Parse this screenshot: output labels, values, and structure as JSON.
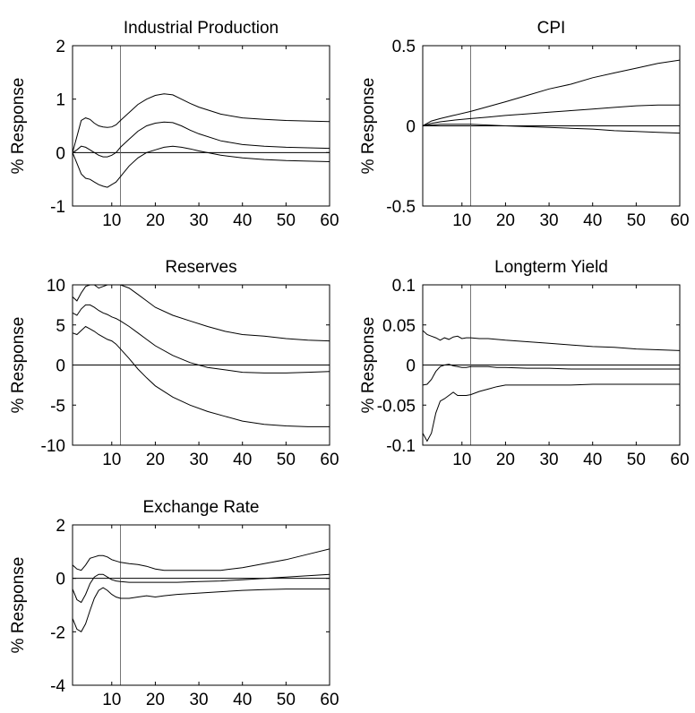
{
  "ylabel": "% Response",
  "colors": {
    "line": "#000000",
    "axes": "#000000",
    "background": "#ffffff"
  },
  "chart_data": [
    {
      "type": "line",
      "title": "Industrial Production",
      "ylabel": "% Response",
      "xlim": [
        1,
        60
      ],
      "ylim": [
        -1,
        2
      ],
      "xticks": [
        10,
        20,
        30,
        40,
        50,
        60
      ],
      "yticks": [
        -1,
        0,
        1,
        2
      ],
      "ytick_labels": [
        "-1",
        "0",
        "1",
        "2"
      ],
      "vline": 12,
      "zero_line": true,
      "series": [
        {
          "x": [
            1,
            2,
            3,
            4,
            5,
            6,
            7,
            8,
            9,
            10,
            11,
            12,
            14,
            16,
            18,
            20,
            22,
            24,
            26,
            28,
            30,
            35,
            40,
            45,
            50,
            55,
            60
          ],
          "values": [
            0,
            0.3,
            0.6,
            0.65,
            0.62,
            0.55,
            0.5,
            0.48,
            0.47,
            0.48,
            0.52,
            0.6,
            0.75,
            0.9,
            1.0,
            1.07,
            1.1,
            1.08,
            1.0,
            0.92,
            0.85,
            0.72,
            0.65,
            0.62,
            0.6,
            0.59,
            0.58
          ]
        },
        {
          "x": [
            1,
            2,
            3,
            4,
            5,
            6,
            7,
            8,
            9,
            10,
            11,
            12,
            14,
            16,
            18,
            20,
            22,
            24,
            26,
            28,
            30,
            35,
            40,
            45,
            50,
            55,
            60
          ],
          "values": [
            0,
            0.05,
            0.12,
            0.1,
            0.05,
            0,
            -0.05,
            -0.08,
            -0.08,
            -0.05,
            0,
            0.1,
            0.25,
            0.4,
            0.5,
            0.55,
            0.57,
            0.56,
            0.5,
            0.42,
            0.35,
            0.22,
            0.15,
            0.12,
            0.1,
            0.09,
            0.08
          ]
        },
        {
          "x": [
            1,
            2,
            3,
            4,
            5,
            6,
            7,
            8,
            9,
            10,
            11,
            12,
            14,
            16,
            18,
            20,
            22,
            24,
            26,
            28,
            30,
            35,
            40,
            45,
            50,
            55,
            60
          ],
          "values": [
            0,
            -0.2,
            -0.4,
            -0.48,
            -0.5,
            -0.55,
            -0.6,
            -0.63,
            -0.65,
            -0.6,
            -0.55,
            -0.45,
            -0.25,
            -0.1,
            0,
            0.05,
            0.1,
            0.12,
            0.1,
            0.07,
            0.03,
            -0.05,
            -0.1,
            -0.13,
            -0.15,
            -0.16,
            -0.17
          ]
        }
      ]
    },
    {
      "type": "line",
      "title": "CPI",
      "ylabel": "% Response",
      "xlim": [
        1,
        60
      ],
      "ylim": [
        -0.5,
        0.5
      ],
      "xticks": [
        10,
        20,
        30,
        40,
        50,
        60
      ],
      "yticks": [
        -0.5,
        0,
        0.5
      ],
      "ytick_labels": [
        "-0.5",
        "0",
        "0.5"
      ],
      "vline": 12,
      "zero_line": true,
      "series": [
        {
          "x": [
            1,
            3,
            5,
            8,
            12,
            16,
            20,
            25,
            30,
            35,
            40,
            45,
            50,
            55,
            60
          ],
          "values": [
            0,
            0.03,
            0.045,
            0.065,
            0.09,
            0.12,
            0.15,
            0.19,
            0.23,
            0.26,
            0.3,
            0.33,
            0.36,
            0.39,
            0.41
          ]
        },
        {
          "x": [
            1,
            3,
            5,
            8,
            12,
            16,
            20,
            25,
            30,
            35,
            40,
            45,
            50,
            55,
            60
          ],
          "values": [
            0,
            0.015,
            0.025,
            0.035,
            0.045,
            0.055,
            0.065,
            0.075,
            0.085,
            0.095,
            0.105,
            0.115,
            0.125,
            0.13,
            0.13
          ]
        },
        {
          "x": [
            1,
            3,
            5,
            8,
            12,
            16,
            20,
            25,
            30,
            35,
            40,
            45,
            50,
            55,
            60
          ],
          "values": [
            0,
            0.005,
            0.01,
            0.01,
            0.01,
            0.005,
            0,
            -0.005,
            -0.01,
            -0.015,
            -0.02,
            -0.03,
            -0.035,
            -0.04,
            -0.045
          ]
        }
      ]
    },
    {
      "type": "line",
      "title": "Reserves",
      "ylabel": "% Response",
      "xlim": [
        1,
        60
      ],
      "ylim": [
        -10,
        10
      ],
      "xticks": [
        10,
        20,
        30,
        40,
        50,
        60
      ],
      "yticks": [
        -10,
        -5,
        0,
        5,
        10
      ],
      "ytick_labels": [
        "-10",
        "-5",
        "0",
        "5",
        "10"
      ],
      "vline": 12,
      "zero_line": true,
      "series": [
        {
          "x": [
            1,
            2,
            3,
            4,
            5,
            6,
            7,
            8,
            9,
            10,
            11,
            12,
            14,
            16,
            18,
            20,
            24,
            28,
            32,
            36,
            40,
            45,
            50,
            55,
            60
          ],
          "values": [
            8.5,
            8,
            9,
            9.8,
            10,
            10,
            9.6,
            9.8,
            10,
            10,
            10,
            10,
            9.6,
            8.8,
            8,
            7.2,
            6.2,
            5.5,
            4.8,
            4.2,
            3.8,
            3.6,
            3.3,
            3.1,
            3
          ]
        },
        {
          "x": [
            1,
            2,
            3,
            4,
            5,
            6,
            7,
            8,
            9,
            10,
            11,
            12,
            14,
            16,
            18,
            20,
            24,
            28,
            32,
            36,
            40,
            45,
            50,
            55,
            60
          ],
          "values": [
            6.5,
            6.2,
            7,
            7.5,
            7.5,
            7.2,
            6.8,
            6.5,
            6.3,
            6,
            5.8,
            5.5,
            4.8,
            4,
            3.2,
            2.4,
            1.2,
            0.3,
            -0.3,
            -0.6,
            -0.9,
            -1,
            -1,
            -0.9,
            -0.8
          ]
        },
        {
          "x": [
            1,
            2,
            3,
            4,
            5,
            6,
            7,
            8,
            9,
            10,
            11,
            12,
            14,
            16,
            18,
            20,
            24,
            28,
            32,
            36,
            40,
            45,
            50,
            55,
            60
          ],
          "values": [
            4,
            3.8,
            4.3,
            4.8,
            4.5,
            4.2,
            3.8,
            3.5,
            3.2,
            3,
            2.6,
            2,
            0.8,
            -0.5,
            -1.6,
            -2.6,
            -4,
            -5,
            -5.8,
            -6.4,
            -7,
            -7.4,
            -7.6,
            -7.7,
            -7.7
          ]
        }
      ]
    },
    {
      "type": "line",
      "title": "Longterm Yield",
      "ylabel": "% Response",
      "xlim": [
        1,
        60
      ],
      "ylim": [
        -0.1,
        0.1
      ],
      "xticks": [
        10,
        20,
        30,
        40,
        50,
        60
      ],
      "yticks": [
        -0.1,
        -0.05,
        0,
        0.05,
        0.1
      ],
      "ytick_labels": [
        "-0.1",
        "-0.05",
        "0",
        "0.05",
        "0.1"
      ],
      "vline": 12,
      "zero_line": true,
      "series": [
        {
          "x": [
            1,
            2,
            3,
            4,
            5,
            6,
            7,
            8,
            9,
            10,
            11,
            12,
            14,
            16,
            18,
            20,
            25,
            30,
            35,
            40,
            45,
            50,
            55,
            60
          ],
          "values": [
            0.043,
            0.038,
            0.036,
            0.034,
            0.031,
            0.034,
            0.032,
            0.035,
            0.036,
            0.033,
            0.034,
            0.034,
            0.033,
            0.033,
            0.032,
            0.031,
            0.029,
            0.027,
            0.025,
            0.023,
            0.022,
            0.02,
            0.019,
            0.018
          ]
        },
        {
          "x": [
            1,
            2,
            3,
            4,
            5,
            6,
            7,
            8,
            9,
            10,
            11,
            12,
            14,
            16,
            18,
            20,
            25,
            30,
            35,
            40,
            45,
            50,
            55,
            60
          ],
          "values": [
            -0.025,
            -0.024,
            -0.018,
            -0.008,
            -0.002,
            0,
            0.001,
            -0.001,
            -0.002,
            -0.003,
            -0.003,
            -0.002,
            -0.002,
            -0.002,
            -0.003,
            -0.003,
            -0.004,
            -0.004,
            -0.005,
            -0.005,
            -0.005,
            -0.005,
            -0.005,
            -0.005
          ]
        },
        {
          "x": [
            1,
            2,
            3,
            4,
            5,
            6,
            7,
            8,
            9,
            10,
            11,
            12,
            14,
            16,
            18,
            20,
            25,
            30,
            35,
            40,
            45,
            50,
            55,
            60
          ],
          "values": [
            -0.085,
            -0.095,
            -0.085,
            -0.06,
            -0.045,
            -0.042,
            -0.038,
            -0.034,
            -0.038,
            -0.038,
            -0.038,
            -0.037,
            -0.033,
            -0.03,
            -0.027,
            -0.025,
            -0.025,
            -0.025,
            -0.025,
            -0.024,
            -0.024,
            -0.024,
            -0.024,
            -0.024
          ]
        }
      ]
    },
    {
      "type": "line",
      "title": "Exchange Rate",
      "ylabel": "% Response",
      "xlim": [
        1,
        60
      ],
      "ylim": [
        -4,
        2
      ],
      "xticks": [
        10,
        20,
        30,
        40,
        50,
        60
      ],
      "yticks": [
        -4,
        -2,
        0,
        2
      ],
      "ytick_labels": [
        "-4",
        "-2",
        "0",
        "2"
      ],
      "vline": 12,
      "zero_line": true,
      "series": [
        {
          "x": [
            1,
            2,
            3,
            4,
            5,
            6,
            7,
            8,
            9,
            10,
            11,
            12,
            14,
            16,
            18,
            20,
            22,
            25,
            30,
            35,
            40,
            45,
            50,
            55,
            60
          ],
          "values": [
            0.5,
            0.35,
            0.3,
            0.5,
            0.75,
            0.8,
            0.85,
            0.85,
            0.8,
            0.7,
            0.65,
            0.6,
            0.55,
            0.52,
            0.45,
            0.35,
            0.3,
            0.3,
            0.3,
            0.3,
            0.4,
            0.55,
            0.7,
            0.9,
            1.1
          ]
        },
        {
          "x": [
            1,
            2,
            3,
            4,
            5,
            6,
            7,
            8,
            9,
            10,
            11,
            12,
            14,
            16,
            18,
            20,
            22,
            25,
            30,
            35,
            40,
            45,
            50,
            55,
            60
          ],
          "values": [
            -0.4,
            -0.8,
            -0.9,
            -0.6,
            -0.2,
            0.05,
            0.15,
            0.15,
            0.05,
            -0.05,
            -0.1,
            -0.12,
            -0.15,
            -0.15,
            -0.15,
            -0.15,
            -0.15,
            -0.15,
            -0.12,
            -0.1,
            -0.05,
            0,
            0.05,
            0.1,
            0.15
          ]
        },
        {
          "x": [
            1,
            2,
            3,
            4,
            5,
            6,
            7,
            8,
            9,
            10,
            11,
            12,
            14,
            16,
            18,
            20,
            22,
            25,
            30,
            35,
            40,
            45,
            50,
            55,
            60
          ],
          "values": [
            -1.5,
            -1.9,
            -2.0,
            -1.7,
            -1.2,
            -0.75,
            -0.45,
            -0.35,
            -0.45,
            -0.6,
            -0.7,
            -0.75,
            -0.75,
            -0.7,
            -0.65,
            -0.7,
            -0.65,
            -0.6,
            -0.55,
            -0.5,
            -0.45,
            -0.42,
            -0.4,
            -0.4,
            -0.4
          ]
        }
      ]
    }
  ]
}
